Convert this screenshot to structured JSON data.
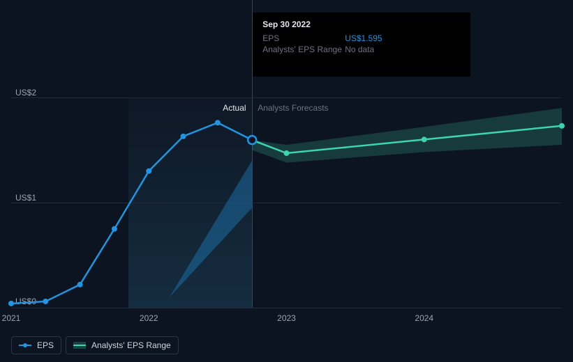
{
  "chart": {
    "type": "line",
    "background": "#0d1421",
    "grid_color": "#1f2937",
    "ylim": [
      0,
      2
    ],
    "yticks": [
      0,
      1,
      2
    ],
    "ytick_labels": [
      "US$0",
      "US$1",
      "US$2"
    ],
    "xlim": [
      2021,
      2025
    ],
    "xticks": [
      2021,
      2022,
      2023,
      2024
    ],
    "xtick_labels": [
      "2021",
      "2022",
      "2023",
      "2024"
    ],
    "actual_region": {
      "start": 2021.85,
      "end": 2022.75,
      "label": "Actual",
      "color": "#e5e7eb"
    },
    "forecast_region": {
      "start": 2022.75,
      "label": "Analysts Forecasts",
      "color": "#6b7280"
    },
    "hover_x": 2022.75,
    "actual_series": {
      "name": "EPS",
      "color": "#2394df",
      "line_width": 2.5,
      "marker_radius": 4,
      "points": [
        {
          "x": 2021.0,
          "y": 0.04
        },
        {
          "x": 2021.25,
          "y": 0.06
        },
        {
          "x": 2021.5,
          "y": 0.22
        },
        {
          "x": 2021.75,
          "y": 0.75
        },
        {
          "x": 2022.0,
          "y": 1.3
        },
        {
          "x": 2022.25,
          "y": 1.63
        },
        {
          "x": 2022.5,
          "y": 1.76
        },
        {
          "x": 2022.75,
          "y": 1.595
        }
      ]
    },
    "forecast_series": {
      "name": "EPS Forecast",
      "color": "#3fd4b0",
      "line_width": 2.5,
      "marker_radius": 4,
      "points": [
        {
          "x": 2022.75,
          "y": 1.595
        },
        {
          "x": 2023.0,
          "y": 1.47
        },
        {
          "x": 2024.0,
          "y": 1.6
        },
        {
          "x": 2025.0,
          "y": 1.73
        }
      ]
    },
    "actual_range_band": {
      "color": "#2394df",
      "opacity": 0.35,
      "upper": [
        {
          "x": 2022.15,
          "y": 0.1
        },
        {
          "x": 2022.75,
          "y": 1.4
        }
      ],
      "lower": [
        {
          "x": 2022.75,
          "y": 0.95
        },
        {
          "x": 2022.15,
          "y": 0.1
        }
      ]
    },
    "forecast_range_band": {
      "color": "#3fd4b0",
      "opacity": 0.2,
      "upper": [
        {
          "x": 2022.75,
          "y": 1.595
        },
        {
          "x": 2023.0,
          "y": 1.55
        },
        {
          "x": 2024.0,
          "y": 1.72
        },
        {
          "x": 2025.0,
          "y": 1.9
        }
      ],
      "lower": [
        {
          "x": 2025.0,
          "y": 1.55
        },
        {
          "x": 2024.0,
          "y": 1.48
        },
        {
          "x": 2023.0,
          "y": 1.38
        },
        {
          "x": 2022.75,
          "y": 1.5
        }
      ]
    }
  },
  "tooltip": {
    "date": "Sep 30 2022",
    "rows": [
      {
        "key": "EPS",
        "value": "US$1.595",
        "nodata": false
      },
      {
        "key": "Analysts' EPS Range",
        "value": "No data",
        "nodata": true
      }
    ]
  },
  "legend": {
    "items": [
      {
        "label": "EPS",
        "color": "#2394df",
        "swatch": "dot-line"
      },
      {
        "label": "Analysts' EPS Range",
        "color": "#3fd4b0",
        "swatch": "band-line"
      }
    ]
  }
}
